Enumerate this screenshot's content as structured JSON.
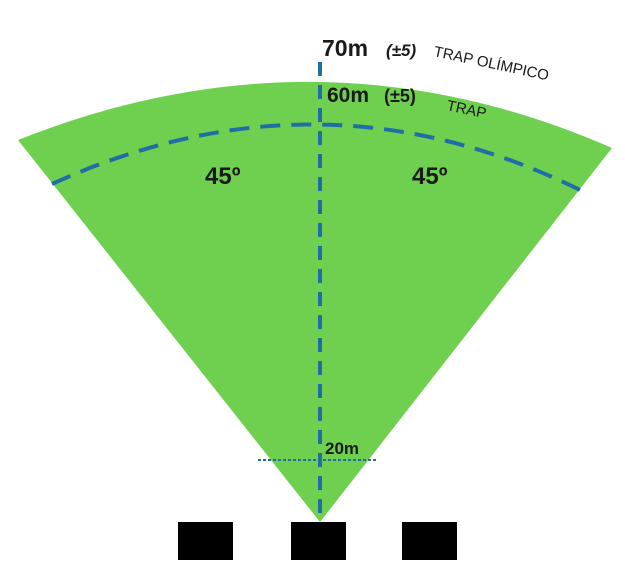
{
  "labels": {
    "olympic_distance": "70m",
    "olympic_tolerance": "(±5)",
    "olympic_name": "TRAP OLÍMPICO",
    "trap_distance": "60m",
    "trap_tolerance": "(±5)",
    "trap_name": "TRAP",
    "left_angle": "45º",
    "right_angle": "45º",
    "inner_distance": "20m"
  },
  "colors": {
    "field": "#6fcf4f",
    "dashed_line": "#1f6fa6",
    "bunker": "#000000",
    "text": "#1a1a1a"
  }
}
